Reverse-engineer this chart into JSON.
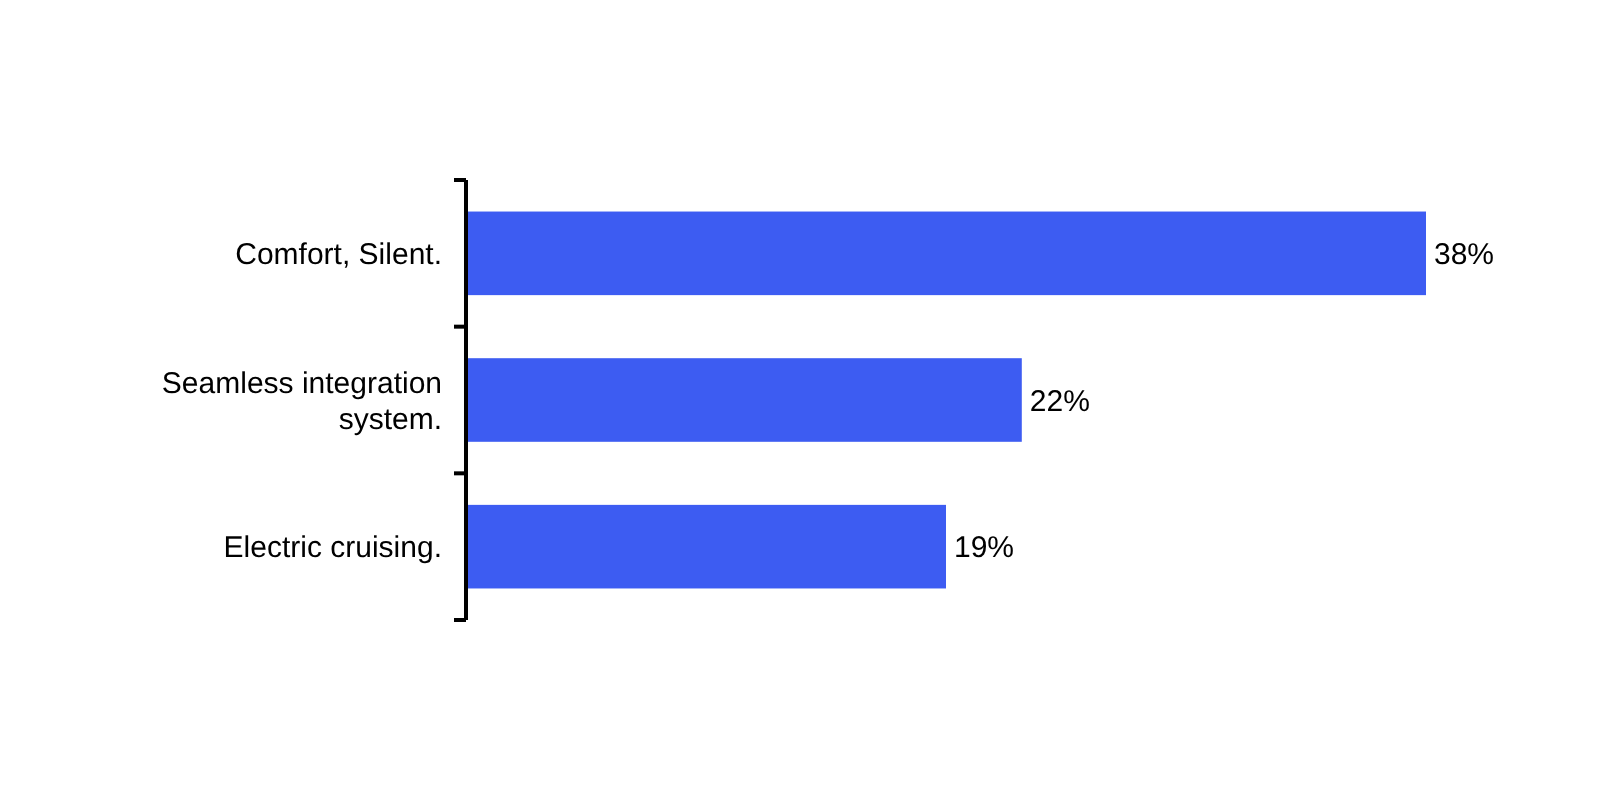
{
  "chart_data": {
    "type": "bar",
    "orientation": "horizontal",
    "categories": [
      "Comfort, Silent.",
      "Seamless integration system.",
      "Electric cruising."
    ],
    "values": [
      38,
      22,
      19
    ],
    "value_labels": [
      "38%",
      "22%",
      "19%"
    ],
    "color": "#3d5cf2"
  }
}
